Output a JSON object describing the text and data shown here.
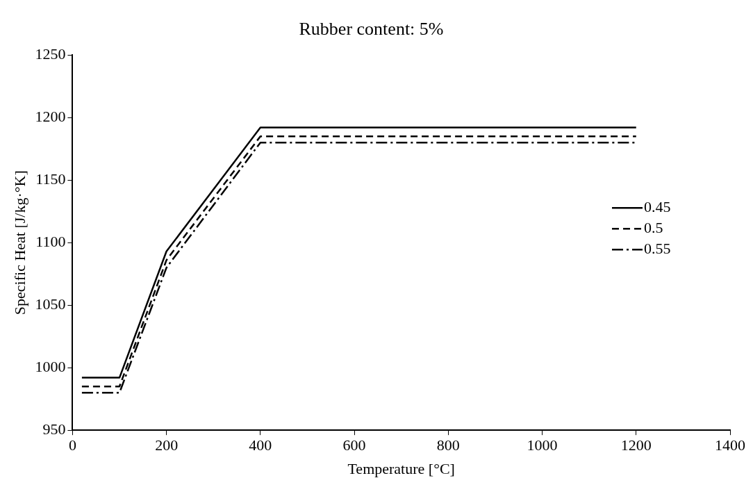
{
  "chart_data": {
    "type": "line",
    "title": "Rubber content: 5%",
    "xlabel": "Temperature [°C]",
    "ylabel": "Specific Heat [J/kg·°K]",
    "x": [
      20,
      100,
      200,
      400,
      1200
    ],
    "series": [
      {
        "name": "0.45",
        "color": "#000000",
        "line_style": "solid",
        "values": [
          992,
          992,
          1093,
          1192,
          1192
        ]
      },
      {
        "name": "0.5",
        "color": "#000000",
        "line_style": "dashed",
        "values": [
          985,
          985,
          1086,
          1185,
          1185
        ]
      },
      {
        "name": "0.55",
        "color": "#000000",
        "line_style": "dashdot",
        "values": [
          980,
          980,
          1080,
          1180,
          1180
        ]
      }
    ],
    "xlim": [
      0,
      1400
    ],
    "xticks": [
      0,
      200,
      400,
      600,
      800,
      1000,
      1200,
      1400
    ],
    "ylim": [
      950,
      1250
    ],
    "yticks": [
      950,
      1000,
      1050,
      1100,
      1150,
      1200,
      1250
    ],
    "grid": false,
    "legend": "right",
    "marker": "none"
  }
}
